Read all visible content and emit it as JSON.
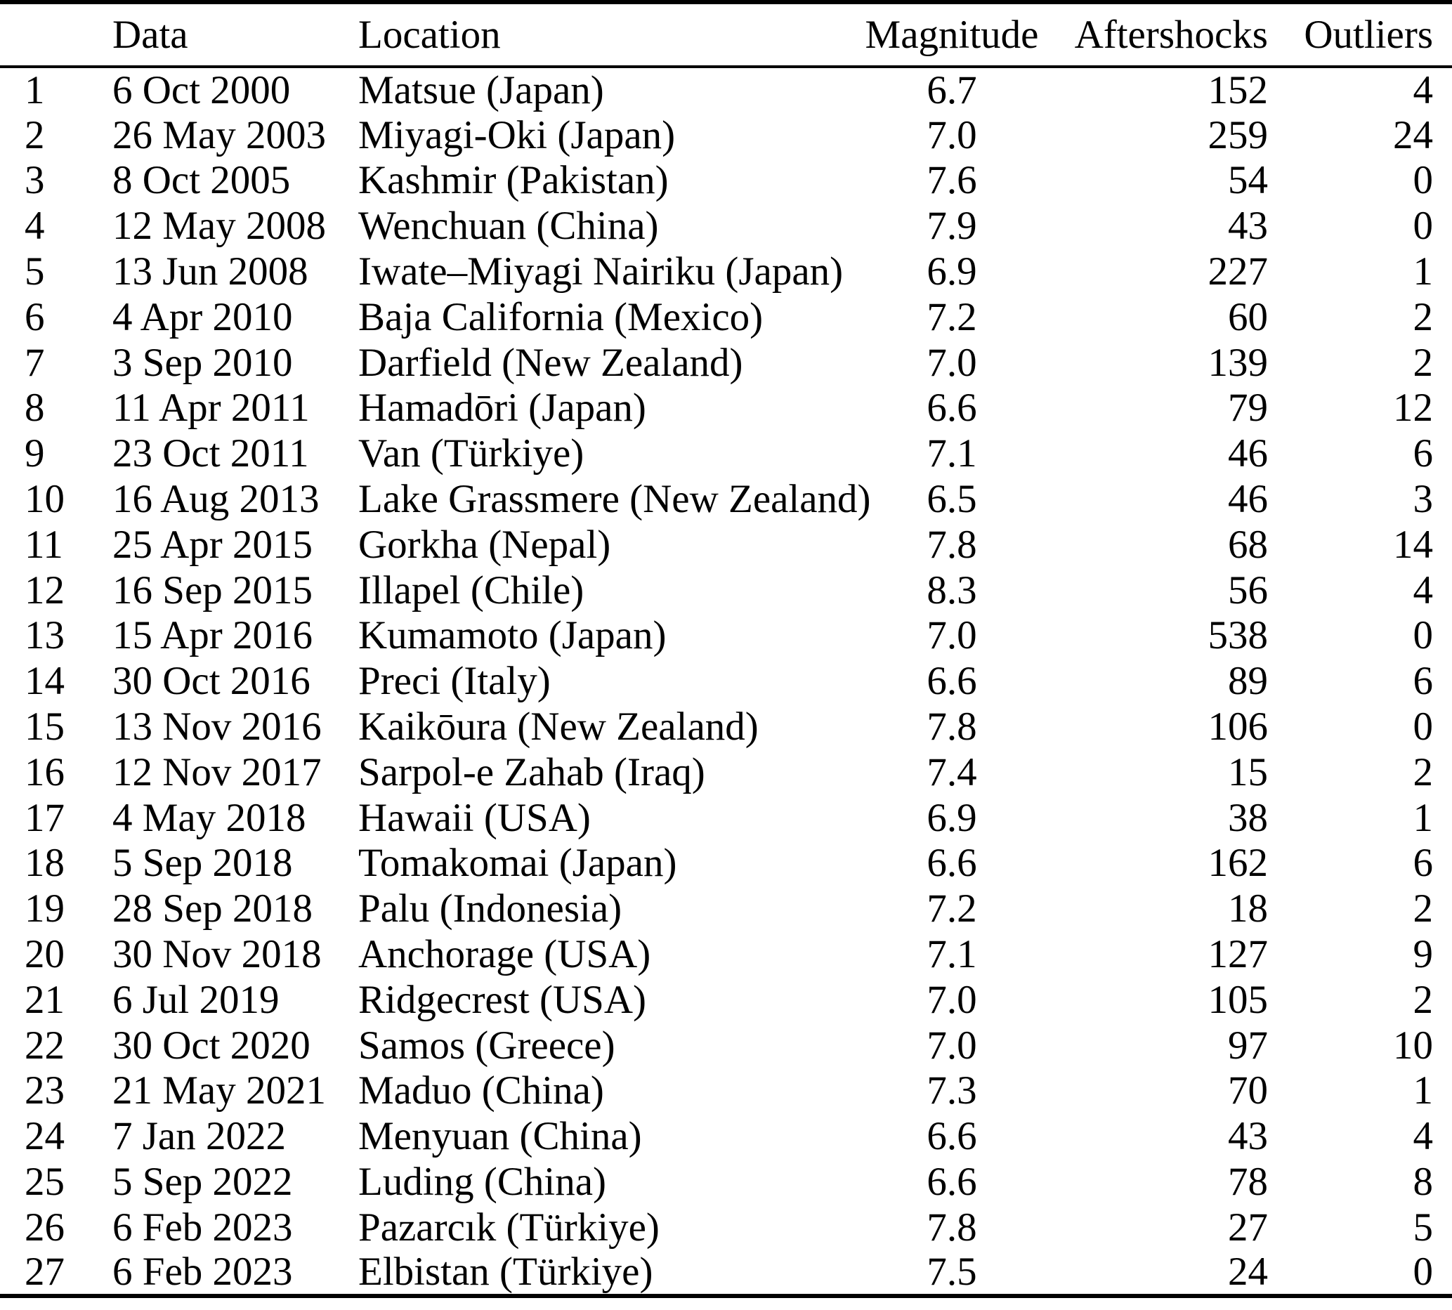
{
  "table": {
    "columns": [
      "",
      "Data",
      "Location",
      "Magnitude",
      "Aftershocks",
      "Outliers"
    ],
    "rows": [
      {
        "index": "1",
        "date": "6 Oct 2000",
        "location": "Matsue (Japan)",
        "magnitude": "6.7",
        "aftershocks": "152",
        "outliers": "4"
      },
      {
        "index": "2",
        "date": "26 May 2003",
        "location": "Miyagi-Oki (Japan)",
        "magnitude": "7.0",
        "aftershocks": "259",
        "outliers": "24"
      },
      {
        "index": "3",
        "date": "8 Oct 2005",
        "location": "Kashmir (Pakistan)",
        "magnitude": "7.6",
        "aftershocks": "54",
        "outliers": "0"
      },
      {
        "index": "4",
        "date": "12 May 2008",
        "location": "Wenchuan (China)",
        "magnitude": "7.9",
        "aftershocks": "43",
        "outliers": "0"
      },
      {
        "index": "5",
        "date": "13 Jun 2008",
        "location": "Iwate–Miyagi Nairiku (Japan)",
        "magnitude": "6.9",
        "aftershocks": "227",
        "outliers": "1"
      },
      {
        "index": "6",
        "date": "4 Apr 2010",
        "location": "Baja California (Mexico)",
        "magnitude": "7.2",
        "aftershocks": "60",
        "outliers": "2"
      },
      {
        "index": "7",
        "date": "3 Sep 2010",
        "location": "Darfield (New Zealand)",
        "magnitude": "7.0",
        "aftershocks": "139",
        "outliers": "2"
      },
      {
        "index": "8",
        "date": "11 Apr 2011",
        "location": "Hamadōri (Japan)",
        "magnitude": "6.6",
        "aftershocks": "79",
        "outliers": "12"
      },
      {
        "index": "9",
        "date": "23 Oct 2011",
        "location": "Van (Türkiye)",
        "magnitude": "7.1",
        "aftershocks": "46",
        "outliers": "6"
      },
      {
        "index": "10",
        "date": "16 Aug 2013",
        "location": "Lake Grassmere (New Zealand)",
        "magnitude": "6.5",
        "aftershocks": "46",
        "outliers": "3"
      },
      {
        "index": "11",
        "date": "25 Apr 2015",
        "location": "Gorkha (Nepal)",
        "magnitude": "7.8",
        "aftershocks": "68",
        "outliers": "14"
      },
      {
        "index": "12",
        "date": "16 Sep 2015",
        "location": "Illapel (Chile)",
        "magnitude": "8.3",
        "aftershocks": "56",
        "outliers": "4"
      },
      {
        "index": "13",
        "date": "15 Apr 2016",
        "location": "Kumamoto (Japan)",
        "magnitude": "7.0",
        "aftershocks": "538",
        "outliers": "0"
      },
      {
        "index": "14",
        "date": "30 Oct 2016",
        "location": "Preci (Italy)",
        "magnitude": "6.6",
        "aftershocks": "89",
        "outliers": "6"
      },
      {
        "index": "15",
        "date": "13 Nov 2016",
        "location": "Kaikōura (New Zealand)",
        "magnitude": "7.8",
        "aftershocks": "106",
        "outliers": "0"
      },
      {
        "index": "16",
        "date": "12 Nov 2017",
        "location": "Sarpol-e Zahab (Iraq)",
        "magnitude": "7.4",
        "aftershocks": "15",
        "outliers": "2"
      },
      {
        "index": "17",
        "date": "4 May 2018",
        "location": "Hawaii (USA)",
        "magnitude": "6.9",
        "aftershocks": "38",
        "outliers": "1"
      },
      {
        "index": "18",
        "date": "5 Sep 2018",
        "location": "Tomakomai (Japan)",
        "magnitude": "6.6",
        "aftershocks": "162",
        "outliers": "6"
      },
      {
        "index": "19",
        "date": "28 Sep 2018",
        "location": "Palu (Indonesia)",
        "magnitude": "7.2",
        "aftershocks": "18",
        "outliers": "2"
      },
      {
        "index": "20",
        "date": "30 Nov 2018",
        "location": "Anchorage (USA)",
        "magnitude": "7.1",
        "aftershocks": "127",
        "outliers": "9"
      },
      {
        "index": "21",
        "date": "6 Jul 2019",
        "location": "Ridgecrest (USA)",
        "magnitude": "7.0",
        "aftershocks": "105",
        "outliers": "2"
      },
      {
        "index": "22",
        "date": "30 Oct 2020",
        "location": "Samos (Greece)",
        "magnitude": "7.0",
        "aftershocks": "97",
        "outliers": "10"
      },
      {
        "index": "23",
        "date": "21 May 2021",
        "location": "Maduo (China)",
        "magnitude": "7.3",
        "aftershocks": "70",
        "outliers": "1"
      },
      {
        "index": "24",
        "date": "7 Jan 2022",
        "location": "Menyuan (China)",
        "magnitude": "6.6",
        "aftershocks": "43",
        "outliers": "4"
      },
      {
        "index": "25",
        "date": "5 Sep 2022",
        "location": "Luding (China)",
        "magnitude": "6.6",
        "aftershocks": "78",
        "outliers": "8"
      },
      {
        "index": "26",
        "date": "6 Feb 2023",
        "location": "Pazarcık (Türkiye)",
        "magnitude": "7.8",
        "aftershocks": "27",
        "outliers": "5"
      },
      {
        "index": "27",
        "date": "6 Feb 2023",
        "location": "Elbistan (Türkiye)",
        "magnitude": "7.5",
        "aftershocks": "24",
        "outliers": "0"
      }
    ]
  },
  "colors": {
    "text": "#000000",
    "background": "#ffffff",
    "rule": "#000000"
  }
}
